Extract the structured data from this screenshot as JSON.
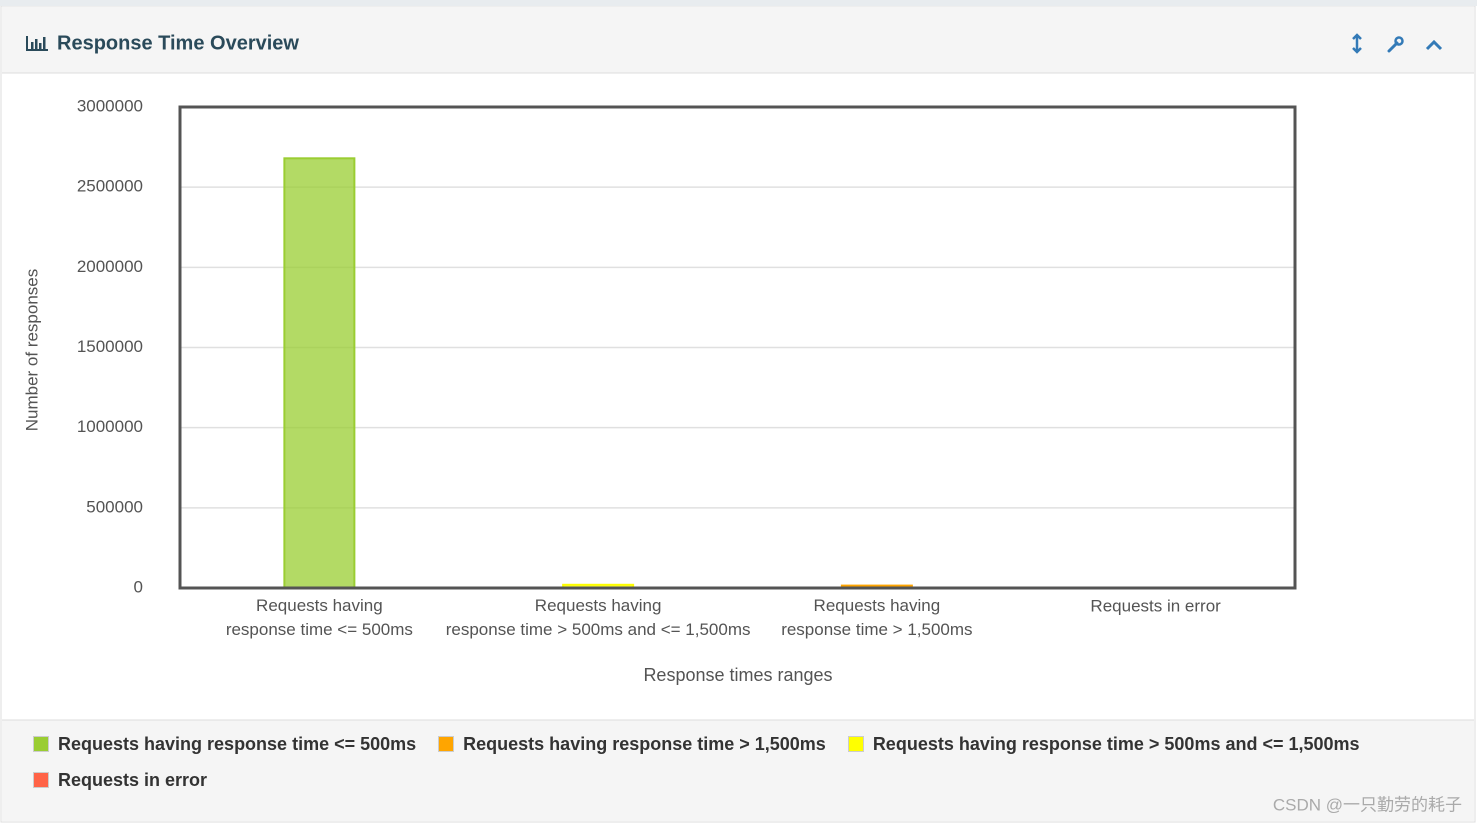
{
  "chart_data": {
    "type": "bar",
    "title": "Response Time Overview",
    "y_label": "Number of responses",
    "x_label": "Response times ranges",
    "categories": [
      "Requests having\nresponse time <= 500ms",
      "Requests having\nresponse time > 500ms and <= 1,500ms",
      "Requests having\nresponse time > 1,500ms",
      "Requests in error"
    ],
    "series": [
      {
        "name": "Requests having response time <= 500ms",
        "color": "#9acd32",
        "values": [
          2680000,
          null,
          null,
          null
        ]
      },
      {
        "name": "Requests having response time > 1,500ms",
        "color": "#ffa500",
        "values": [
          null,
          null,
          15000,
          null
        ]
      },
      {
        "name": "Requests having response time > 500ms and <= 1,500ms",
        "color": "#ffff00",
        "values": [
          null,
          20000,
          null,
          null
        ]
      },
      {
        "name": "Requests in error",
        "color": "#ff6347",
        "values": [
          null,
          null,
          null,
          0
        ]
      }
    ],
    "ylim": [
      0,
      3000000
    ],
    "yticks": [
      0,
      500000,
      1000000,
      1500000,
      2000000,
      2500000,
      3000000
    ],
    "grid": true
  },
  "watermark": "CSDN @一只勤劳的耗子"
}
